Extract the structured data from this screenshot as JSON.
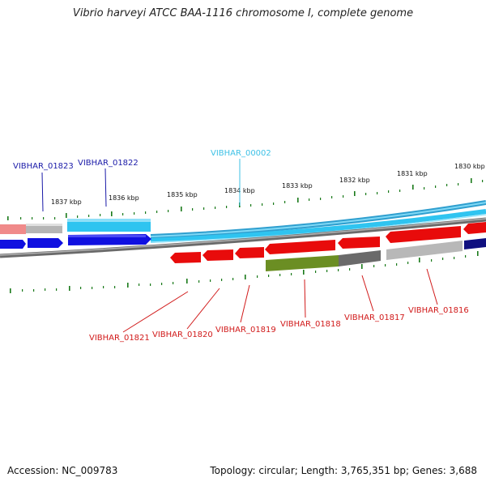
{
  "title": "Vibrio harveyi ATCC BAA-1116 chromosome I, complete genome",
  "footer": {
    "accession": "Accession: NC_009783",
    "summary": "Topology: circular; Length: 3,765,351 bp; Genes: 3,688"
  },
  "ticks": [
    "1837 kbp",
    "1836 kbp",
    "1835 kbp",
    "1834 kbp",
    "1833 kbp",
    "1832 kbp",
    "1831 kbp",
    "1830 kbp"
  ],
  "gene_labels": [
    {
      "text": "VIBHAR_01823",
      "color": "#1a1aa8"
    },
    {
      "text": "VIBHAR_01822",
      "color": "#1a1aa8"
    },
    {
      "text": "VIBHAR_00002",
      "color": "#3ec1e6"
    },
    {
      "text": "VIBHAR_01821",
      "color": "#d11a1a"
    },
    {
      "text": "VIBHAR_01820",
      "color": "#d11a1a"
    },
    {
      "text": "VIBHAR_01819",
      "color": "#d11a1a"
    },
    {
      "text": "VIBHAR_01818",
      "color": "#d11a1a"
    },
    {
      "text": "VIBHAR_01817",
      "color": "#d11a1a"
    },
    {
      "text": "VIBHAR_01816",
      "color": "#d11a1a"
    }
  ],
  "colors": {
    "forward_cds": "#1010e0",
    "reverse_cds": "#e80b0b",
    "rna": "#2fc4f0",
    "gray_feature": "#b8b8b8",
    "green_feature": "#6b8e23",
    "backbone": "#7a7a7a",
    "ticks": "#1a7a1a"
  }
}
